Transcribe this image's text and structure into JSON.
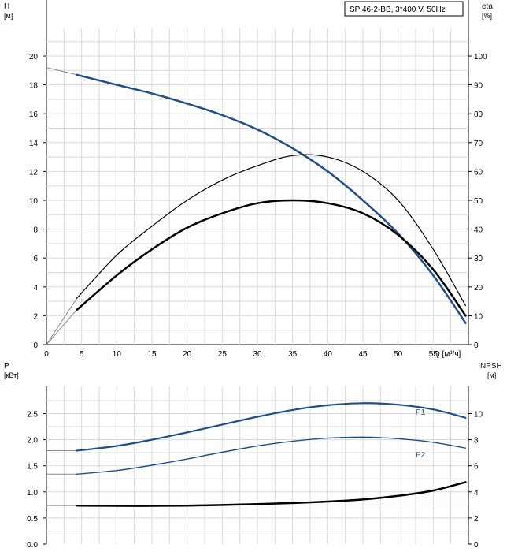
{
  "legend": {
    "text": "SP 46-2-BB, 3*400 V, 50Hz"
  },
  "top_chart": {
    "left_axis": {
      "title": "H",
      "unit": "[м]"
    },
    "right_axis": {
      "title": "eta",
      "unit": "[%]"
    },
    "x_axis": {
      "unit": "Q [м³/ч]"
    },
    "x_ticks": [
      "0",
      "5",
      "10",
      "15",
      "20",
      "25",
      "30",
      "35",
      "40",
      "45",
      "50",
      "55"
    ],
    "y_left_ticks": [
      "0",
      "2",
      "4",
      "6",
      "8",
      "10",
      "12",
      "14",
      "16",
      "18",
      "20"
    ],
    "y_right_ticks": [
      "0",
      "10",
      "20",
      "30",
      "40",
      "50",
      "60",
      "70",
      "80",
      "90",
      "100"
    ]
  },
  "bottom_chart": {
    "left_axis": {
      "title": "P",
      "unit": "[кВт]"
    },
    "right_axis": {
      "title": "NPSH",
      "unit": "[м]"
    },
    "y_left_ticks": [
      "0.0",
      "0.5",
      "1.0",
      "1.5",
      "2.0",
      "2.5"
    ],
    "y_right_ticks": [
      "0",
      "2",
      "4",
      "6",
      "8",
      "10"
    ],
    "labels": {
      "p1": "P1",
      "p2": "P2"
    }
  },
  "colors": {
    "blue": "#1f4e8c",
    "black": "#000000",
    "grid": "#d9d9d9"
  },
  "chart_data": [
    {
      "type": "line",
      "x_label": "Q [м³/ч]",
      "x_range": [
        0,
        60
      ],
      "y_left": {
        "label": "H [м]",
        "range": [
          0,
          20
        ]
      },
      "y_right": {
        "label": "eta [%]",
        "range": [
          0,
          100
        ]
      },
      "series": [
        {
          "name": "H",
          "axis": "left",
          "color": "#1f4e8c",
          "x": [
            4.3,
            10,
            15,
            20,
            25,
            30,
            35,
            40,
            45,
            50,
            55,
            59.6
          ],
          "y": [
            18.7,
            18.0,
            17.4,
            16.7,
            15.9,
            14.9,
            13.6,
            12.0,
            10.0,
            7.7,
            4.8,
            1.5
          ]
        },
        {
          "name": "eta (thin)",
          "axis": "right",
          "color": "#000000",
          "x": [
            4.3,
            10,
            15,
            20,
            25,
            30,
            35,
            40,
            45,
            50,
            55,
            59.6
          ],
          "y": [
            16.0,
            31.0,
            41.0,
            50.0,
            57.0,
            62.0,
            65.5,
            65.0,
            60.0,
            50.0,
            33.0,
            13.5
          ]
        },
        {
          "name": "eta (bold)",
          "axis": "right",
          "color": "#000000",
          "x": [
            4.3,
            10,
            15,
            20,
            25,
            30,
            35,
            40,
            45,
            50,
            55,
            59.6
          ],
          "y": [
            12.0,
            24.0,
            33.0,
            40.5,
            45.5,
            49.0,
            50.0,
            49.0,
            45.5,
            38.0,
            26.0,
            10.0
          ]
        }
      ]
    },
    {
      "type": "line",
      "x_label": "Q [м³/ч]",
      "x_range": [
        0,
        60
      ],
      "y_left": {
        "label": "P [кВт]",
        "range": [
          0,
          3.0
        ]
      },
      "y_right": {
        "label": "NPSH [м]",
        "range": [
          0,
          12
        ]
      },
      "series": [
        {
          "name": "P1",
          "axis": "left",
          "color": "#1f4e8c",
          "x": [
            4.3,
            10,
            15,
            20,
            25,
            30,
            35,
            40,
            45,
            50,
            55,
            59.6
          ],
          "y": [
            1.79,
            1.88,
            2.0,
            2.14,
            2.29,
            2.44,
            2.57,
            2.66,
            2.7,
            2.67,
            2.58,
            2.42
          ]
        },
        {
          "name": "P2",
          "axis": "left",
          "color": "#1f4e8c",
          "x": [
            4.3,
            10,
            15,
            20,
            25,
            30,
            35,
            40,
            45,
            50,
            55,
            59.6
          ],
          "y": [
            1.34,
            1.41,
            1.51,
            1.63,
            1.76,
            1.88,
            1.97,
            2.03,
            2.05,
            2.02,
            1.95,
            1.84
          ]
        },
        {
          "name": "NPSH",
          "axis": "right",
          "color": "#000000",
          "x": [
            4.3,
            10,
            15,
            20,
            25,
            30,
            35,
            40,
            45,
            50,
            55,
            59.6
          ],
          "y": [
            2.95,
            2.93,
            2.93,
            2.95,
            3.0,
            3.07,
            3.15,
            3.26,
            3.42,
            3.7,
            4.1,
            4.75
          ]
        }
      ]
    }
  ]
}
